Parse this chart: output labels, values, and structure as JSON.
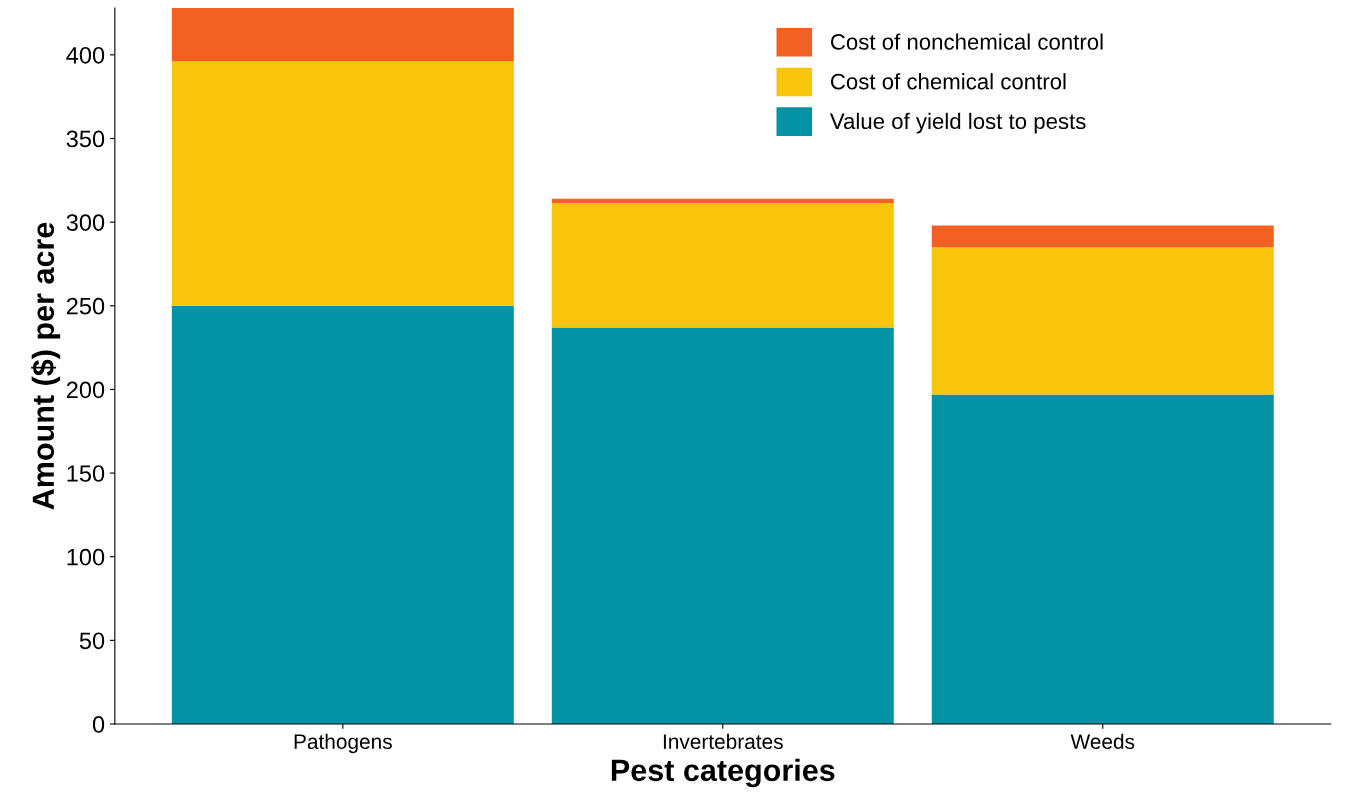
{
  "chart_data": {
    "type": "bar",
    "stacked": true,
    "xlabel": "Pest categories",
    "ylabel": "Amount ($) per acre",
    "categories": [
      "Pathogens",
      "Invertebrates",
      "Weeds"
    ],
    "series": [
      {
        "name": "Value of yield lost to pests",
        "color": "#0391a4",
        "values": [
          250,
          237,
          197
        ]
      },
      {
        "name": "Cost of chemical control",
        "color": "#f8c40c",
        "values": [
          146,
          74.5,
          88
        ]
      },
      {
        "name": "Cost of nonchemical control",
        "color": "#f26024",
        "values": [
          32,
          2.5,
          13
        ]
      }
    ],
    "ylim": [
      0,
      428
    ],
    "yticks": [
      0,
      50,
      100,
      150,
      200,
      250,
      300,
      350,
      400
    ],
    "grid": false,
    "legend": "top right"
  }
}
